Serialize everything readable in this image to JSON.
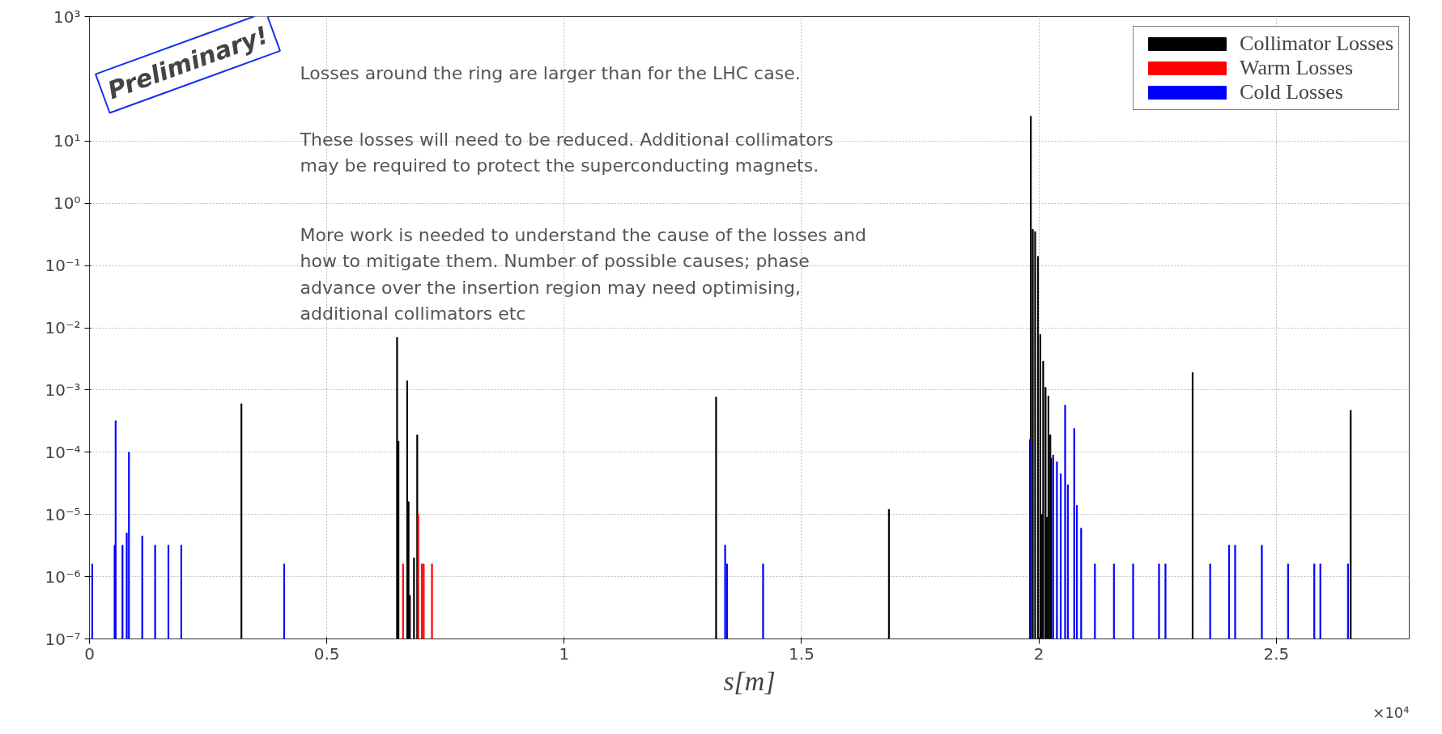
{
  "chart_data": {
    "type": "bar",
    "xlabel": "s[m]",
    "series": [
      {
        "name": "Collimator Losses",
        "color": "#000000",
        "x": [
          0.3201,
          0.648,
          0.6509,
          0.6692,
          0.6721,
          0.675,
          0.6837,
          0.6905,
          1.32,
          1.684,
          1.983,
          1.987,
          1.992,
          1.998,
          2.003,
          2.006,
          2.009,
          2.014,
          2.017,
          2.02,
          2.024,
          2.026,
          2.3238,
          2.6568
        ],
        "values": [
          0.0006,
          0.007,
          0.00015,
          0.0014,
          1.6e-05,
          5e-07,
          2e-06,
          0.00019,
          0.00077,
          1.2e-05,
          25,
          0.38,
          0.35,
          0.14,
          0.0078,
          1e-05,
          0.0029,
          0.0011,
          9e-06,
          0.0008,
          0.00019,
          8e-05,
          0.0019,
          0.00047
        ]
      },
      {
        "name": "Warm Losses",
        "color": "#ff0000",
        "x": [
          0.6605,
          0.6925,
          0.7002,
          0.7041,
          0.7215
        ],
        "values": [
          1.6e-06,
          1e-05,
          1.6e-06,
          1.6e-06,
          1.6e-06
        ]
      },
      {
        "name": "Cold Losses",
        "color": "#0000ff",
        "x": [
          0.0058,
          0.053,
          0.0551,
          0.0696,
          0.0785,
          0.0832,
          0.1112,
          0.1383,
          0.1663,
          0.1934,
          0.4101,
          1.339,
          1.343,
          1.419,
          1.981,
          2.03,
          2.038,
          2.046,
          2.0552,
          2.061,
          2.0743,
          2.08,
          2.089,
          2.118,
          2.158,
          2.1984,
          2.253,
          2.2666,
          2.3607,
          2.4006,
          2.4133,
          2.4696,
          2.5248,
          2.5801,
          2.5928,
          2.651
        ],
        "values": [
          1.6e-06,
          3.2e-06,
          0.00032,
          3.2e-06,
          5e-06,
          0.0001,
          4.5e-06,
          3.2e-06,
          3.2e-06,
          3.2e-06,
          1.6e-06,
          3.2e-06,
          1.6e-06,
          1.6e-06,
          0.00016,
          9e-05,
          7e-05,
          4.5e-05,
          0.00057,
          3e-05,
          0.00024,
          1.4e-05,
          6e-06,
          1.6e-06,
          1.6e-06,
          1.6e-06,
          1.6e-06,
          1.6e-06,
          1.6e-06,
          3.2e-06,
          3.2e-06,
          3.2e-06,
          1.6e-06,
          1.6e-06,
          1.6e-06,
          1.6e-06
        ]
      }
    ],
    "log": "y",
    "xlim": [
      0,
      2.78
    ],
    "ylim": [
      1e-07,
      1000
    ],
    "xticks": [
      0,
      0.5,
      1,
      1.5,
      2,
      2.5
    ],
    "yticks": [
      {
        "value": 1e-07,
        "label": "10⁻⁷"
      },
      {
        "value": 1e-06,
        "label": "10⁻⁶"
      },
      {
        "value": 1e-05,
        "label": "10⁻⁵"
      },
      {
        "value": 0.0001,
        "label": "10⁻⁴"
      },
      {
        "value": 0.001,
        "label": "10⁻³"
      },
      {
        "value": 0.01,
        "label": "10⁻²"
      },
      {
        "value": 0.1,
        "label": "10⁻¹"
      },
      {
        "value": 1,
        "label": "10⁰"
      },
      {
        "value": 10,
        "label": "10¹"
      },
      {
        "value": 1000,
        "label": "10³"
      }
    ],
    "grid": true,
    "legend": "top right",
    "annotations": [
      "Preliminary!",
      "Losses around the ring are larger than for the LHC case.",
      "These losses will need to be reduced. Additional collimators\nmay be required to protect the superconducting magnets.",
      "More work is needed to understand the cause of the losses and\nhow to mitigate them. Number of possible causes; phase\nadvance over the insertion region may need optimising,\nadditional collimators etc",
      "×10⁴"
    ]
  }
}
